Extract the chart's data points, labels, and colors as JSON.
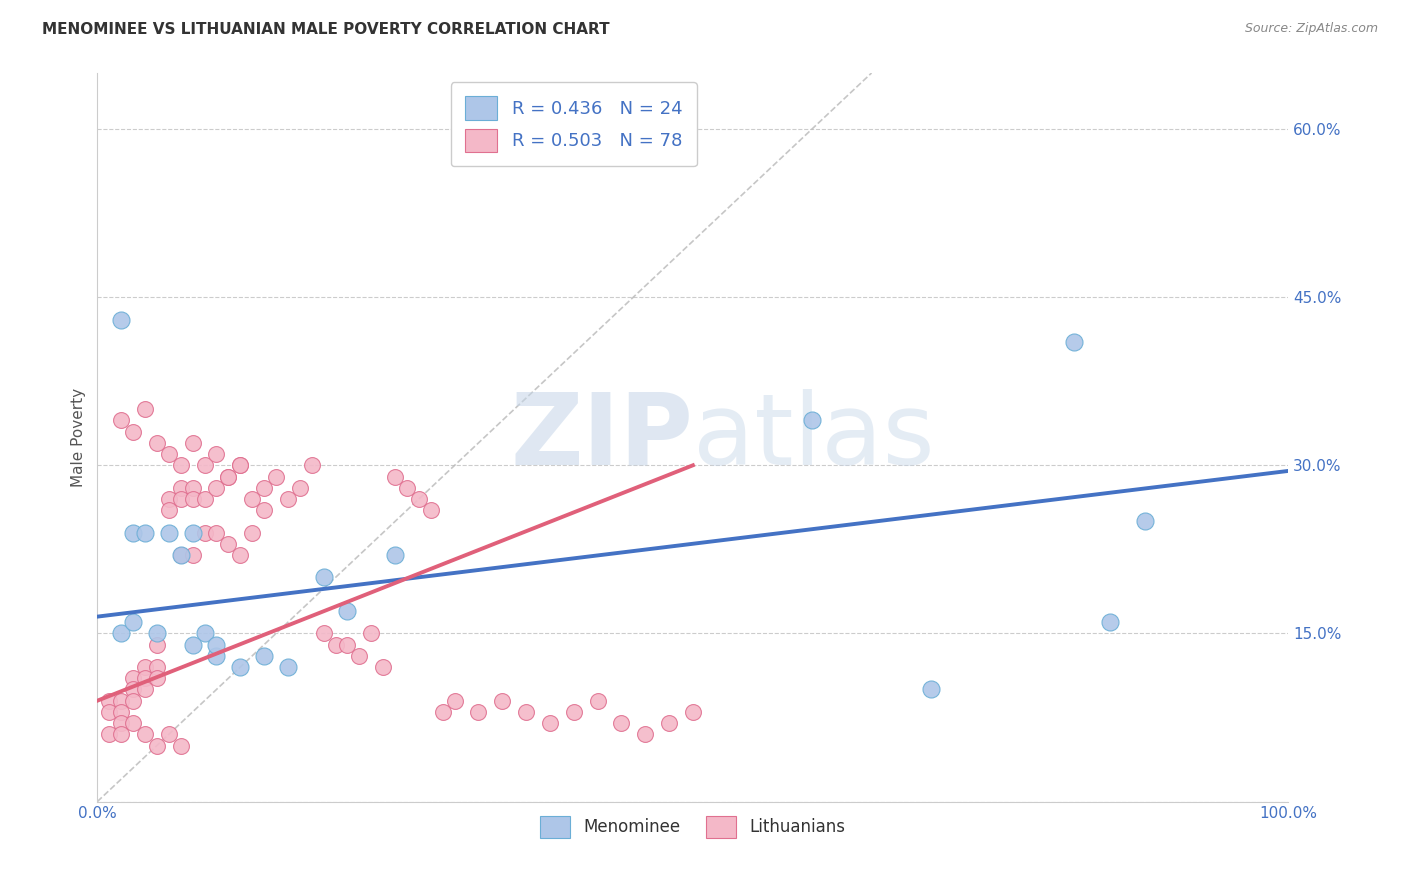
{
  "title": "MENOMINEE VS LITHUANIAN MALE POVERTY CORRELATION CHART",
  "source": "Source: ZipAtlas.com",
  "xlabel": "",
  "ylabel": "Male Poverty",
  "watermark_zip": "ZIP",
  "watermark_atlas": "atlas",
  "xlim": [
    0,
    1.0
  ],
  "ylim": [
    0,
    0.65
  ],
  "xticks": [
    0.0,
    0.2,
    0.4,
    0.6,
    0.8,
    1.0
  ],
  "xticklabels": [
    "0.0%",
    "",
    "",
    "",
    "",
    "100.0%"
  ],
  "ytick_positions": [
    0.0,
    0.15,
    0.3,
    0.45,
    0.6
  ],
  "yticklabels": [
    "",
    "15.0%",
    "30.0%",
    "45.0%",
    "60.0%"
  ],
  "menominee_color": "#aec6e8",
  "menominee_edge": "#6baed6",
  "lithuanian_color": "#f4b8c8",
  "lithuanian_edge": "#e07090",
  "trend_blue": "#4472c4",
  "trend_pink": "#e0607a",
  "diagonal_color": "#b8b8b8",
  "legend_R_blue": "0.436",
  "legend_N_blue": "24",
  "legend_R_pink": "0.503",
  "legend_N_pink": "78",
  "menominee_x": [
    0.02,
    0.03,
    0.04,
    0.06,
    0.07,
    0.08,
    0.09,
    0.1,
    0.12,
    0.14,
    0.16,
    0.19,
    0.21,
    0.25,
    0.6,
    0.7,
    0.82,
    0.85,
    0.88,
    0.02,
    0.03,
    0.05,
    0.08,
    0.1
  ],
  "menominee_y": [
    0.43,
    0.24,
    0.24,
    0.24,
    0.22,
    0.24,
    0.15,
    0.13,
    0.12,
    0.13,
    0.12,
    0.2,
    0.17,
    0.22,
    0.34,
    0.1,
    0.41,
    0.16,
    0.25,
    0.15,
    0.16,
    0.15,
    0.14,
    0.14
  ],
  "lithuanian_x": [
    0.01,
    0.01,
    0.02,
    0.02,
    0.02,
    0.03,
    0.03,
    0.03,
    0.04,
    0.04,
    0.04,
    0.05,
    0.05,
    0.05,
    0.06,
    0.06,
    0.07,
    0.07,
    0.07,
    0.08,
    0.08,
    0.08,
    0.09,
    0.09,
    0.1,
    0.1,
    0.11,
    0.11,
    0.12,
    0.12,
    0.13,
    0.13,
    0.14,
    0.14,
    0.15,
    0.16,
    0.17,
    0.18,
    0.19,
    0.2,
    0.21,
    0.22,
    0.23,
    0.24,
    0.25,
    0.26,
    0.27,
    0.28,
    0.29,
    0.3,
    0.32,
    0.34,
    0.36,
    0.38,
    0.4,
    0.42,
    0.44,
    0.46,
    0.48,
    0.5,
    0.02,
    0.03,
    0.04,
    0.05,
    0.06,
    0.07,
    0.08,
    0.09,
    0.1,
    0.11,
    0.12,
    0.01,
    0.02,
    0.03,
    0.04,
    0.05,
    0.06,
    0.07
  ],
  "lithuanian_y": [
    0.09,
    0.08,
    0.09,
    0.08,
    0.07,
    0.11,
    0.1,
    0.09,
    0.12,
    0.11,
    0.1,
    0.14,
    0.12,
    0.11,
    0.27,
    0.26,
    0.28,
    0.27,
    0.22,
    0.28,
    0.27,
    0.22,
    0.27,
    0.24,
    0.28,
    0.24,
    0.29,
    0.23,
    0.3,
    0.22,
    0.27,
    0.24,
    0.28,
    0.26,
    0.29,
    0.27,
    0.28,
    0.3,
    0.15,
    0.14,
    0.14,
    0.13,
    0.15,
    0.12,
    0.29,
    0.28,
    0.27,
    0.26,
    0.08,
    0.09,
    0.08,
    0.09,
    0.08,
    0.07,
    0.08,
    0.09,
    0.07,
    0.06,
    0.07,
    0.08,
    0.34,
    0.33,
    0.35,
    0.32,
    0.31,
    0.3,
    0.32,
    0.3,
    0.31,
    0.29,
    0.3,
    0.06,
    0.06,
    0.07,
    0.06,
    0.05,
    0.06,
    0.05
  ],
  "trend_blue_x0": 0.0,
  "trend_blue_y0": 0.165,
  "trend_blue_x1": 1.0,
  "trend_blue_y1": 0.295,
  "trend_pink_x0": 0.0,
  "trend_pink_y0": 0.09,
  "trend_pink_x1": 0.5,
  "trend_pink_y1": 0.3
}
